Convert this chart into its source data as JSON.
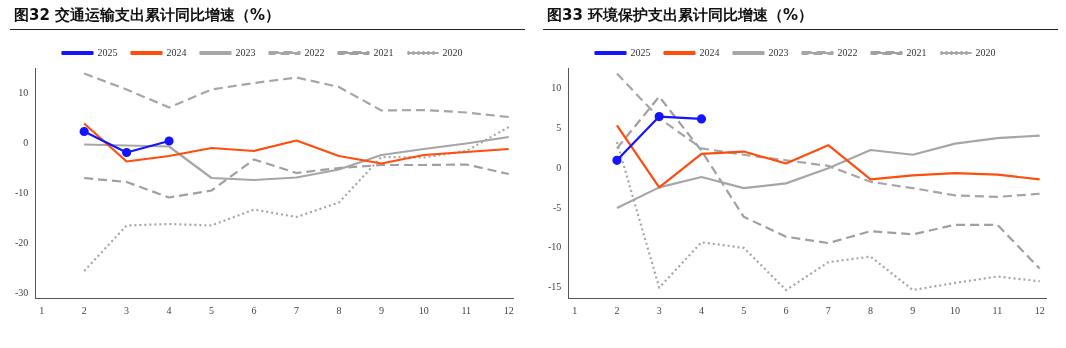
{
  "chart_data": [
    {
      "type": "line",
      "title": "图32 交通运输支出累计同比增速（%）",
      "x": [
        2,
        3,
        4,
        5,
        6,
        7,
        8,
        9,
        10,
        11,
        12
      ],
      "xlim": [
        0.85,
        12.1
      ],
      "xticks": [
        1,
        2,
        3,
        4,
        5,
        6,
        7,
        8,
        9,
        10,
        11,
        12
      ],
      "ylim": [
        -31,
        15
      ],
      "yticks": [
        -30,
        -20,
        -10,
        0,
        10
      ],
      "grid": false,
      "legend": "top",
      "series": [
        {
          "name": "2025",
          "color": "#1414ff",
          "marker": "circle",
          "line_style": "solid",
          "x": [
            2,
            3,
            4
          ],
          "values": [
            2.3,
            -1.9,
            0.4
          ]
        },
        {
          "name": "2024",
          "color": "#ff4d0d",
          "marker": "none",
          "line_style": "solid",
          "values": [
            3.9,
            -3.7,
            -2.6,
            -1.0,
            -1.6,
            0.5,
            -2.6,
            -4.1,
            -2.4,
            -1.8,
            -1.2
          ]
        },
        {
          "name": "2023",
          "color": "#a6a6a6",
          "marker": "none",
          "line_style": "solid",
          "values": [
            -0.3,
            -0.5,
            -0.7,
            -7.0,
            -7.4,
            -6.9,
            -5.3,
            -2.4,
            -1.2,
            -0.1,
            1.2
          ]
        },
        {
          "name": "2022",
          "color": "#a6a6a6",
          "marker": "none",
          "line_style": "dashed",
          "values": [
            13.9,
            10.7,
            7.1,
            10.7,
            12.0,
            13.1,
            11.2,
            6.5,
            6.6,
            6.1,
            5.2
          ]
        },
        {
          "name": "2021",
          "color": "#a0a0a0",
          "marker": "none",
          "line_style": "dashed",
          "values": [
            -7.0,
            -7.8,
            -10.9,
            -9.5,
            -3.3,
            -6.0,
            -5.0,
            -4.4,
            -4.4,
            -4.3,
            -6.2
          ]
        },
        {
          "name": "2020",
          "color": "#a6a6a6",
          "marker": "none",
          "line_style": "dotted",
          "values": [
            -25.6,
            -16.5,
            -16.2,
            -16.5,
            -13.3,
            -14.8,
            -11.9,
            -2.8,
            -2.9,
            -1.6,
            3.2
          ]
        }
      ]
    },
    {
      "type": "line",
      "title": "图33 环境保护支出累计同比增速（%）",
      "x": [
        2,
        3,
        4,
        5,
        6,
        7,
        8,
        9,
        10,
        11,
        12
      ],
      "xlim": [
        0.85,
        12.15
      ],
      "xticks": [
        1,
        2,
        3,
        4,
        5,
        6,
        7,
        8,
        9,
        10,
        11,
        12
      ],
      "ylim": [
        -16.3,
        12.6
      ],
      "yticks": [
        -15,
        -10,
        -5,
        0,
        5,
        10
      ],
      "grid": false,
      "legend": "top",
      "series": [
        {
          "name": "2025",
          "color": "#1414ff",
          "marker": "circle",
          "line_style": "solid",
          "x": [
            2,
            3,
            4
          ],
          "values": [
            1.0,
            6.5,
            6.2
          ]
        },
        {
          "name": "2024",
          "color": "#ff4d0d",
          "marker": "none",
          "line_style": "solid",
          "values": [
            5.4,
            -2.4,
            1.8,
            2.1,
            0.6,
            2.9,
            -1.4,
            -0.9,
            -0.6,
            -0.8,
            -1.4
          ]
        },
        {
          "name": "2023",
          "color": "#a6a6a6",
          "marker": "none",
          "line_style": "solid",
          "values": [
            -5.0,
            -2.4,
            -1.1,
            -2.5,
            -1.9,
            0.0,
            2.3,
            1.7,
            3.1,
            3.8,
            4.1
          ]
        },
        {
          "name": "2022",
          "color": "#a6a6a6",
          "marker": "none",
          "line_style": "dashed",
          "values": [
            11.9,
            6.3,
            2.5,
            1.7,
            1.0,
            0.3,
            -1.7,
            -2.5,
            -3.4,
            -3.6,
            -3.2
          ]
        },
        {
          "name": "2021",
          "color": "#a0a0a0",
          "marker": "none",
          "line_style": "dashed",
          "values": [
            2.5,
            9.0,
            2.2,
            -6.1,
            -8.6,
            -9.4,
            -7.9,
            -8.3,
            -7.1,
            -7.1,
            -12.6
          ]
        },
        {
          "name": "2020",
          "color": "#a6a6a6",
          "marker": "none",
          "line_style": "dotted",
          "values": [
            3.3,
            -15.0,
            -9.3,
            -10.0,
            -15.3,
            -11.8,
            -11.1,
            -15.3,
            -14.4,
            -13.6,
            -14.2
          ]
        }
      ]
    }
  ]
}
